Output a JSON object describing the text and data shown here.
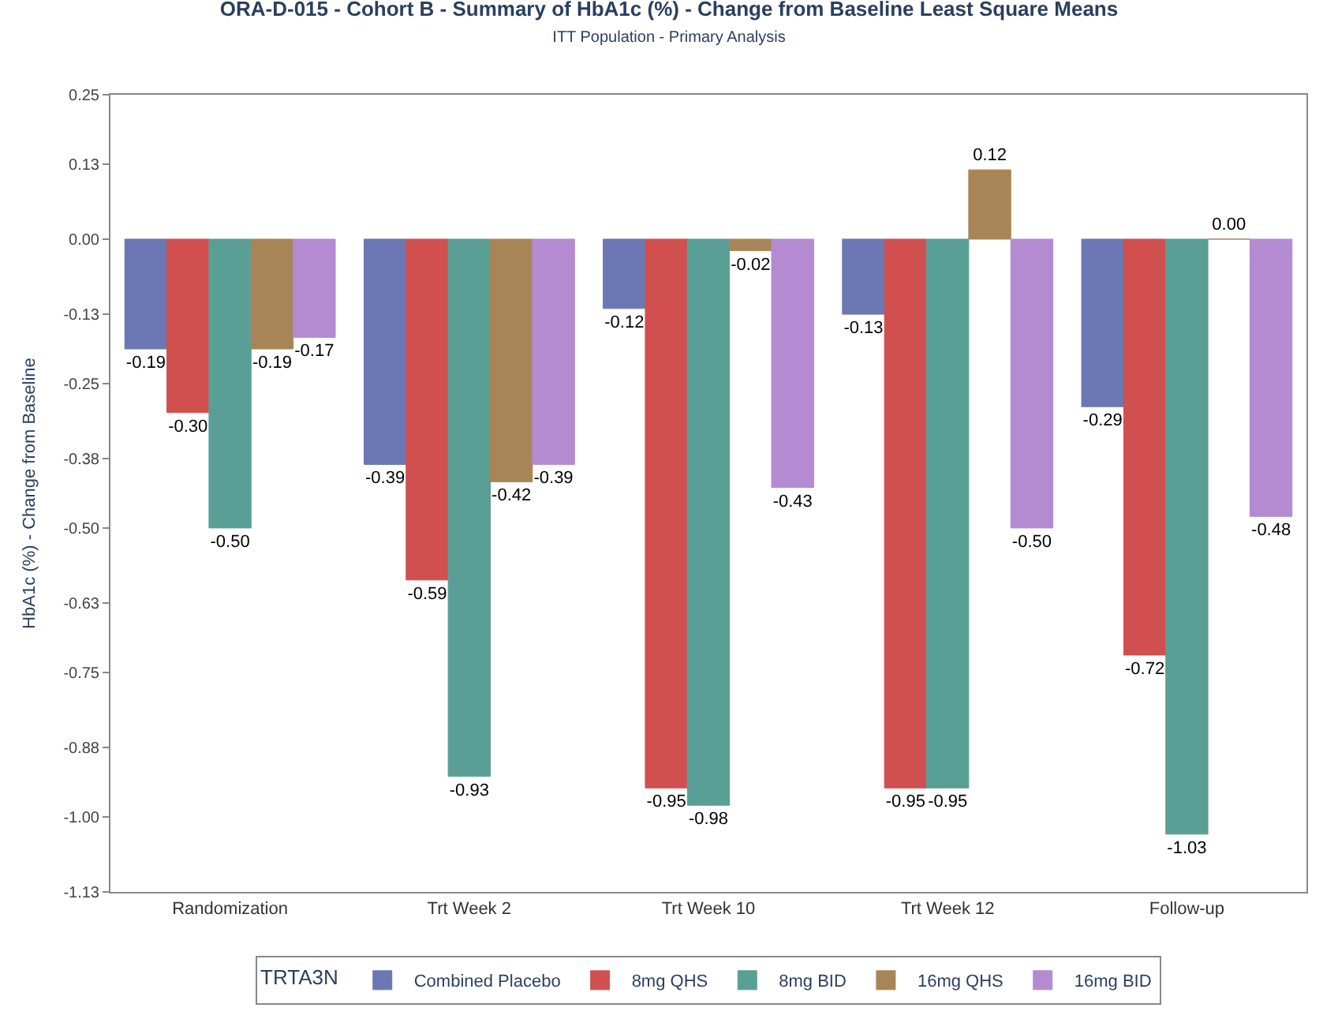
{
  "chart_data": {
    "type": "bar",
    "title": "ORA-D-015 - Cohort B - Summary of HbA1c (%) - Change from Baseline Least Square Means",
    "subtitle": "ITT Population - Primary Analysis",
    "ylabel": "HbA1c (%) - Change from Baseline",
    "legend_title": "TRTA3N",
    "categories": [
      "Randomization",
      "Trt Week 2",
      "Trt Week 10",
      "Trt Week 12",
      "Follow-up"
    ],
    "series": [
      {
        "name": "Combined Placebo",
        "color": "#6b78b4",
        "values": [
          -0.19,
          -0.39,
          -0.12,
          -0.13,
          -0.29
        ],
        "value_labels": [
          "-0.19",
          "-0.39",
          "-0.12",
          "-0.13",
          "-0.29"
        ]
      },
      {
        "name": "8mg QHS",
        "color": "#d0504f",
        "values": [
          -0.3,
          -0.59,
          -0.95,
          -0.95,
          -0.72
        ],
        "value_labels": [
          "-0.30",
          "-0.59",
          "-0.95",
          "-0.95",
          "-0.72"
        ]
      },
      {
        "name": "8mg BID",
        "color": "#5a9f96",
        "values": [
          -0.5,
          -0.93,
          -0.98,
          -0.95,
          -1.03
        ],
        "value_labels": [
          "-0.50",
          "-0.93",
          "-0.98",
          "-0.95",
          "-1.03"
        ]
      },
      {
        "name": "16mg QHS",
        "color": "#a88556",
        "values": [
          -0.19,
          -0.42,
          -0.02,
          0.12,
          0.0
        ],
        "value_labels": [
          "-0.19",
          "-0.42",
          "-0.02",
          "0.12",
          "0.00"
        ]
      },
      {
        "name": "16mg BID",
        "color": "#b48ad0",
        "values": [
          -0.17,
          -0.39,
          -0.43,
          -0.5,
          -0.48
        ],
        "value_labels": [
          "-0.17",
          "-0.39",
          "-0.43",
          "-0.50",
          "-0.48"
        ]
      }
    ],
    "ylim": [
      -1.13,
      0.25
    ],
    "yticks": [
      0.25,
      0.13,
      {
        "value": 0,
        "label": "0.00"
      },
      -0.13,
      -0.25,
      -0.38,
      {
        "value": -0.5,
        "label": "-0.50"
      },
      -0.63,
      -0.75,
      -0.88,
      {
        "value": -1,
        "label": "-1.00"
      },
      -1.13
    ],
    "legend": "bottom"
  }
}
